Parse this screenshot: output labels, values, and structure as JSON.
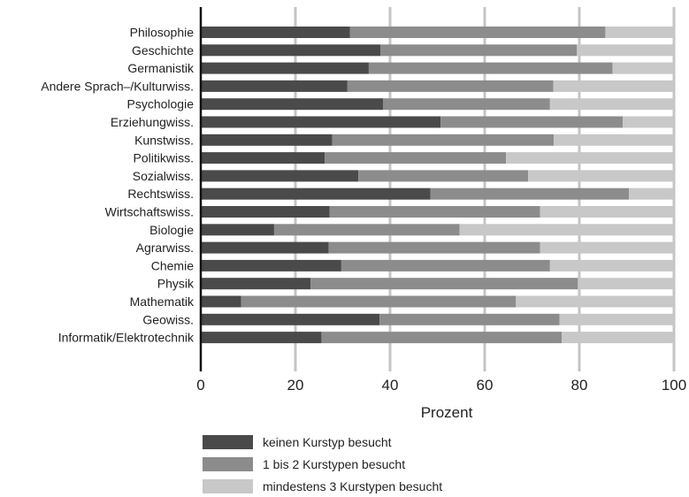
{
  "chart_data": {
    "type": "bar",
    "orientation": "horizontal",
    "stacked": true,
    "title": "",
    "xlabel": "Prozent",
    "ylabel": "",
    "xlim": [
      0,
      100
    ],
    "xticks": [
      0,
      20,
      40,
      60,
      80,
      100
    ],
    "grid": true,
    "legend_position": "bottom",
    "categories": [
      "Philosophie",
      "Geschichte",
      "Germanistik",
      "Andere Sprach–/Kulturwiss.",
      "Psychologie",
      "Erziehungwiss.",
      "Kunstwiss.",
      "Politikwiss.",
      "Sozialwiss.",
      "Rechtswiss.",
      "Wirtschaftswiss.",
      "Biologie",
      "Agrarwiss.",
      "Chemie",
      "Physik",
      "Mathematik",
      "Geowiss.",
      "Informatik/Elektrotechnik"
    ],
    "series": [
      {
        "name": "keinen Kurstyp besucht",
        "color": "#4a4a4a",
        "values": [
          31.5,
          38,
          35.5,
          31,
          38.5,
          50.7,
          27.8,
          26.2,
          33.3,
          48.5,
          27.2,
          15.5,
          27,
          29.7,
          23.2,
          8.5,
          37.8,
          25.5
        ]
      },
      {
        "name": "1 bis 2 Kurstypen besucht",
        "color": "#8c8c8c",
        "values": [
          54,
          41.5,
          51.5,
          43.5,
          35.3,
          38.5,
          46.8,
          38.3,
          35.9,
          42,
          44.5,
          39.2,
          44.7,
          44.1,
          56.5,
          58.1,
          38,
          50.8
        ]
      },
      {
        "name": "mindestens 3 Kurstypen besucht",
        "color": "#c8c8c8",
        "values": [
          14.5,
          20.5,
          13,
          25.5,
          26.2,
          10.8,
          25.4,
          35.5,
          30.8,
          9.5,
          28.3,
          45.3,
          28.3,
          26.2,
          20.3,
          33.4,
          24.2,
          23.7
        ]
      }
    ]
  }
}
